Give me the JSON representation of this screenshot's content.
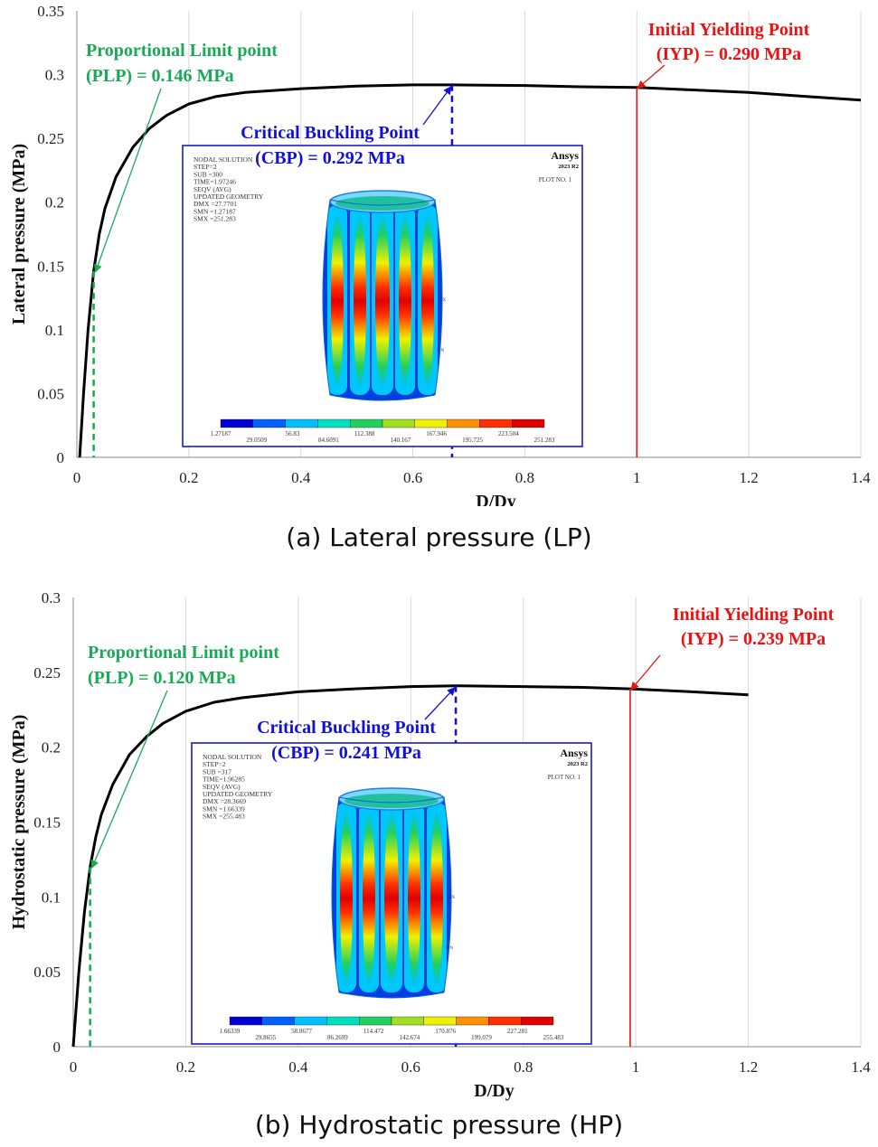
{
  "chart_data": [
    {
      "type": "line",
      "id": "a",
      "caption": "(a) Lateral pressure (LP)",
      "xlabel": "D/Dy",
      "ylabel": "Lateral pressure (MPa)",
      "xlim": [
        0,
        1.4
      ],
      "ylim": [
        0,
        0.35
      ],
      "x_ticks": [
        "0",
        "0.2",
        "0.4",
        "0.6",
        "0.8",
        "1",
        "1.2",
        "1.4"
      ],
      "y_ticks": [
        "0",
        "0.05",
        "0.1",
        "0.15",
        "0.2",
        "0.25",
        "0.3",
        "0.35"
      ],
      "x_tick_values": [
        0,
        0.2,
        0.4,
        0.6,
        0.8,
        1.0,
        1.2,
        1.4
      ],
      "y_tick_values": [
        0,
        0.05,
        0.1,
        0.15,
        0.2,
        0.25,
        0.3,
        0.35
      ],
      "gridlines": "vertical",
      "series": [
        {
          "name": "Lateral pressure curve",
          "x": [
            0.005,
            0.012,
            0.02,
            0.03,
            0.04,
            0.05,
            0.07,
            0.1,
            0.13,
            0.16,
            0.2,
            0.25,
            0.3,
            0.4,
            0.5,
            0.6,
            0.67,
            0.8,
            0.9,
            1.0,
            1.1,
            1.2,
            1.3,
            1.4
          ],
          "y": [
            0.0,
            0.05,
            0.1,
            0.146,
            0.175,
            0.195,
            0.22,
            0.243,
            0.258,
            0.268,
            0.277,
            0.283,
            0.286,
            0.289,
            0.291,
            0.292,
            0.292,
            0.2915,
            0.2905,
            0.29,
            0.288,
            0.286,
            0.283,
            0.28
          ]
        }
      ],
      "markers": [
        {
          "label_line1": "Proportional Limit point",
          "label_line2": "(PLP) = 0.146 MPa",
          "x": 0.03,
          "y": 0.146,
          "color": "#1aaa55"
        },
        {
          "label_line1": "Critical Buckling Point",
          "label_line2": "(CBP) = 0.292 MPa",
          "x": 0.67,
          "y": 0.292,
          "color": "#1010dd"
        },
        {
          "label_line1": "Initial Yielding Point",
          "label_line2": "(IYP) = 0.290 MPa",
          "x": 1.0,
          "y": 0.29,
          "color": "#ee1111"
        }
      ],
      "inset": {
        "lines": [
          "NODAL SOLUTION",
          "STEP=2",
          "SUB =300",
          "TIME=1.97246",
          "SEQV      (AVG)",
          "UPDATED GEOMETRY",
          "DMX =27.7701",
          "SMN =1.27187",
          "SMX =251.283"
        ],
        "brand": "Ansys",
        "version": "2023 R2",
        "plot_no": "PLOT NO.   1",
        "legend_values": [
          "1.27187",
          "29.0509",
          "56.83",
          "84.6091",
          "112.388",
          "140.167",
          "167.946",
          "195.725",
          "223.504",
          "251.283"
        ],
        "node_labels": [
          "MX",
          "MN"
        ]
      }
    },
    {
      "type": "line",
      "id": "b",
      "caption": "(b) Hydrostatic pressure (HP)",
      "xlabel": "D/Dy",
      "ylabel": "Hydrostatic pressure (MPa)",
      "xlim": [
        0,
        1.4
      ],
      "ylim": [
        0,
        0.3
      ],
      "x_ticks": [
        "0",
        "0.2",
        "0.4",
        "0.6",
        "0.8",
        "1",
        "1.2",
        "1.4"
      ],
      "y_ticks": [
        "0",
        "0.05",
        "0.1",
        "0.15",
        "0.2",
        "0.25",
        "0.3"
      ],
      "x_tick_values": [
        0,
        0.2,
        0.4,
        0.6,
        0.8,
        1.0,
        1.2,
        1.4
      ],
      "y_tick_values": [
        0,
        0.05,
        0.1,
        0.15,
        0.2,
        0.25,
        0.3
      ],
      "gridlines": "vertical",
      "series": [
        {
          "name": "Hydrostatic pressure curve",
          "x": [
            0.0,
            0.01,
            0.02,
            0.03,
            0.04,
            0.05,
            0.07,
            0.1,
            0.13,
            0.16,
            0.2,
            0.25,
            0.3,
            0.4,
            0.5,
            0.6,
            0.68,
            0.8,
            0.9,
            0.99,
            1.1,
            1.2
          ],
          "y": [
            0.0,
            0.05,
            0.09,
            0.12,
            0.14,
            0.155,
            0.175,
            0.195,
            0.207,
            0.216,
            0.224,
            0.23,
            0.233,
            0.237,
            0.239,
            0.2405,
            0.241,
            0.2405,
            0.24,
            0.239,
            0.237,
            0.235
          ]
        }
      ],
      "markers": [
        {
          "label_line1": "Proportional Limit point",
          "label_line2": "(PLP) = 0.120 MPa",
          "x": 0.03,
          "y": 0.12,
          "color": "#1aaa55"
        },
        {
          "label_line1": "Critical Buckling Point",
          "label_line2": "(CBP) = 0.241 MPa",
          "x": 0.68,
          "y": 0.241,
          "color": "#1010dd"
        },
        {
          "label_line1": "Initial Yielding Point",
          "label_line2": "(IYP) = 0.239 MPa",
          "x": 0.99,
          "y": 0.239,
          "color": "#ee1111"
        }
      ],
      "inset": {
        "lines": [
          "NODAL SOLUTION",
          "STEP=2",
          "SUB =317",
          "TIME=1.96285",
          "SEQV      (AVG)",
          "UPDATED GEOMETRY",
          "DMX =28.3669",
          "SMN =1.66339",
          "SMX =255.483"
        ],
        "brand": "Ansys",
        "version": "2023 R2",
        "plot_no": "PLOT NO.   1",
        "legend_values": [
          "1.66339",
          "29.8655",
          "58.0677",
          "86.2699",
          "114.472",
          "142.674",
          "170.876",
          "199.079",
          "227.281",
          "255.483"
        ],
        "node_labels": [
          "MX",
          "MN"
        ]
      }
    }
  ],
  "colors": {
    "curve": "#000000",
    "plp": "#1aaa55",
    "cbp": "#1010dd",
    "iyp": "#ee1111",
    "grid": "#d9d9d9",
    "contour": [
      "#0000d0",
      "#0060ff",
      "#00c0ff",
      "#00e0c0",
      "#20d060",
      "#a0e020",
      "#f0f000",
      "#ff9000",
      "#ff3000",
      "#e00000"
    ]
  }
}
